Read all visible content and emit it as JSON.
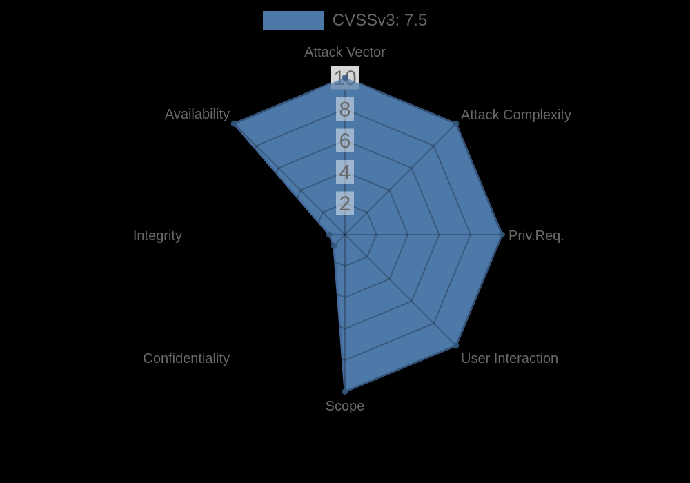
{
  "chart_data": {
    "type": "radar",
    "title": "",
    "categories": [
      "Attack Vector",
      "Attack Complexity",
      "Priv.Req.",
      "User Interaction",
      "Scope",
      "Confidentiality",
      "Integrity",
      "Availability"
    ],
    "series": [
      {
        "name": "CVSSv3: 7.5",
        "values": [
          10,
          10,
          10,
          10,
          10,
          1,
          1,
          10
        ]
      }
    ],
    "rlim": [
      0,
      10
    ],
    "ticks": [
      2,
      4,
      6,
      8,
      10
    ],
    "grid": true,
    "legend_position": "top",
    "colors": {
      "background": "#000000",
      "series_fill": "#4d79a8",
      "series_border": "#44699a",
      "series_point": "#33597f",
      "grid_line": "rgba(0,0,0,0.25)",
      "tick_backdrop": "rgba(255,255,255,0.45)",
      "tick_backdrop_outer": "#d6d6d6",
      "tick_text": "#666666",
      "axis_label_text": "#696969",
      "legend_text": "#666666"
    }
  }
}
